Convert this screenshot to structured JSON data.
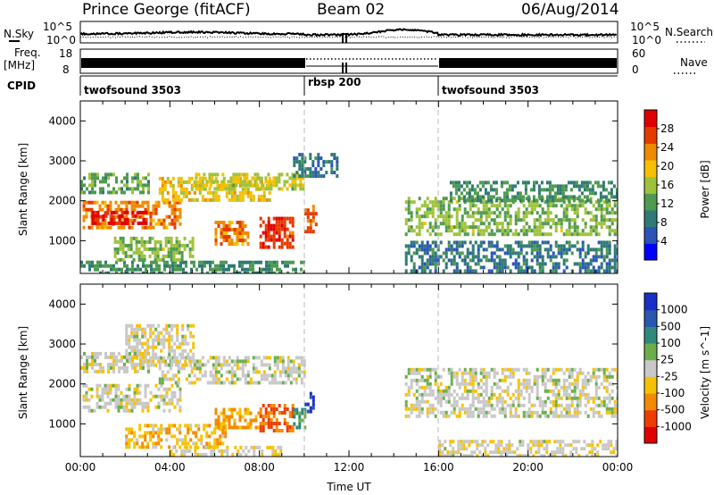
{
  "header": {
    "title": "Prince George (fitACF)",
    "beam": "Beam 02",
    "date": "06/Aug/2014"
  },
  "strip": {
    "nsky_label": "N.Sky",
    "nsearch_label": "N.Search",
    "counts_top": "10^5",
    "counts_bottom": "10^0",
    "freq_label": "Freq.",
    "freq_unit": "[MHz]",
    "freq_top": "18",
    "freq_bottom": "8",
    "nave_top": "60",
    "nave_bottom": "0",
    "nave_label": "Nave",
    "cpid_label": "CPID",
    "cpid_segments": [
      {
        "name": "twofsound 3503",
        "start_hour": 0,
        "end_hour": 10
      },
      {
        "name": "rbsp 200",
        "start_hour": 10,
        "end_hour": 16
      },
      {
        "name": "twofsound 3503",
        "start_hour": 16,
        "end_hour": 24
      }
    ]
  },
  "chart_data": [
    {
      "type": "heatmap",
      "name": "power",
      "xlabel": "",
      "ylabel": "Slant Range [km]",
      "xlim": [
        0,
        24
      ],
      "ylim": [
        180,
        4500
      ],
      "yticks": [
        "1000",
        "2000",
        "3000",
        "4000"
      ],
      "colorbar": {
        "label": "Power [dB]",
        "ticks": [
          "4",
          "8",
          "12",
          "16",
          "20",
          "24",
          "28"
        ],
        "range": [
          0,
          30
        ],
        "colors": [
          "#0000ff",
          "#2a55b8",
          "#2f7a74",
          "#4e9a50",
          "#9fc23b",
          "#f5c000",
          "#f08a00",
          "#e63a00",
          "#e00000"
        ]
      },
      "regions": [
        {
          "t0": 0.1,
          "t1": 4.5,
          "r0": 1300,
          "r1": 2000,
          "level": 22
        },
        {
          "t0": 0.5,
          "t1": 3.0,
          "r0": 1400,
          "r1": 1750,
          "level": 28
        },
        {
          "t0": 3.5,
          "t1": 8.5,
          "r0": 2000,
          "r1": 2600,
          "level": 18
        },
        {
          "t0": 5.0,
          "t1": 10.0,
          "r0": 2300,
          "r1": 2700,
          "level": 16
        },
        {
          "t0": 0.0,
          "t1": 3.0,
          "r0": 2200,
          "r1": 2700,
          "level": 12
        },
        {
          "t0": 0.0,
          "t1": 10.0,
          "r0": 200,
          "r1": 500,
          "level": 10
        },
        {
          "t0": 1.5,
          "t1": 5.0,
          "r0": 500,
          "r1": 1100,
          "level": 14
        },
        {
          "t0": 6.0,
          "t1": 7.5,
          "r0": 900,
          "r1": 1500,
          "level": 22
        },
        {
          "t0": 8.0,
          "t1": 9.5,
          "r0": 800,
          "r1": 1600,
          "level": 26
        },
        {
          "t0": 10.0,
          "t1": 10.5,
          "r0": 1200,
          "r1": 1900,
          "level": 24
        },
        {
          "t0": 9.5,
          "t1": 11.5,
          "r0": 2600,
          "r1": 3200,
          "level": 8
        },
        {
          "t0": 14.5,
          "t1": 24.0,
          "r0": 1200,
          "r1": 2100,
          "level": 14
        },
        {
          "t0": 16.5,
          "t1": 24.0,
          "r0": 2000,
          "r1": 2500,
          "level": 10
        },
        {
          "t0": 14.5,
          "t1": 24.0,
          "r0": 200,
          "r1": 1000,
          "level": 8
        }
      ]
    },
    {
      "type": "heatmap",
      "name": "velocity",
      "xlabel": "Time UT",
      "ylabel": "Slant Range [km]",
      "xlim": [
        0,
        24
      ],
      "ylim": [
        180,
        4500
      ],
      "xticks": [
        "00:00",
        "04:00",
        "08:00",
        "12:00",
        "16:00",
        "20:00",
        "00:00"
      ],
      "yticks": [
        "1000",
        "2000",
        "3000",
        "4000"
      ],
      "colorbar": {
        "label": "Velocity [m s^-1]",
        "ticks": [
          "-1000",
          "-500",
          "-100",
          "-25",
          "25",
          "100",
          "500",
          "1000"
        ],
        "range": [
          -1200,
          1200
        ],
        "colors": [
          "#e00000",
          "#f03c00",
          "#f48a00",
          "#f6c200",
          "#c8c8c8",
          "#6aae4c",
          "#2f8a7c",
          "#2858b0",
          "#1a2fc8"
        ]
      },
      "regions": [
        {
          "t0": 0.1,
          "t1": 4.5,
          "r0": 1300,
          "r1": 2000,
          "level": 0
        },
        {
          "t0": 3.5,
          "t1": 10.0,
          "r0": 2000,
          "r1": 2700,
          "level": 0
        },
        {
          "t0": 2.0,
          "t1": 5.0,
          "r0": 2500,
          "r1": 3500,
          "level": -60
        },
        {
          "t0": 0.0,
          "t1": 3.0,
          "r0": 2300,
          "r1": 2800,
          "level": -40
        },
        {
          "t0": 2.0,
          "t1": 6.5,
          "r0": 400,
          "r1": 1000,
          "level": -300
        },
        {
          "t0": 4.0,
          "t1": 9.0,
          "r0": 200,
          "r1": 450,
          "level": -120
        },
        {
          "t0": 6.0,
          "t1": 8.0,
          "r0": 900,
          "r1": 1400,
          "level": -450
        },
        {
          "t0": 8.0,
          "t1": 9.5,
          "r0": 800,
          "r1": 1500,
          "level": -700
        },
        {
          "t0": 9.5,
          "t1": 10.0,
          "r0": 900,
          "r1": 1400,
          "level": 500
        },
        {
          "t0": 10.0,
          "t1": 10.4,
          "r0": 1300,
          "r1": 1800,
          "level": 1000
        },
        {
          "t0": 14.5,
          "t1": 24.0,
          "r0": 1200,
          "r1": 2400,
          "level": 0
        },
        {
          "t0": 16.0,
          "t1": 24.0,
          "r0": 200,
          "r1": 600,
          "level": -60
        }
      ]
    }
  ]
}
